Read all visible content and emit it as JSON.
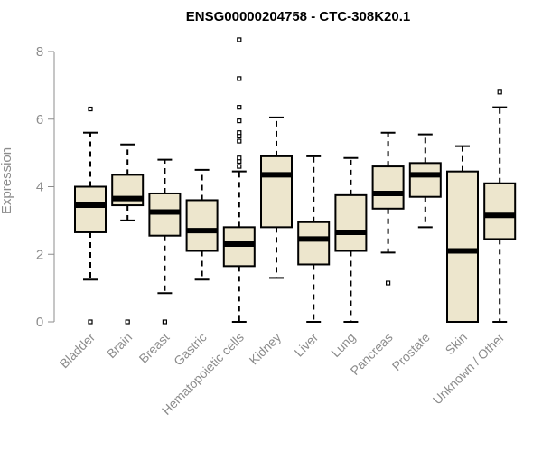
{
  "chart_data": {
    "type": "boxplot",
    "title": "ENSG00000204758 - CTC-308K20.1",
    "ylabel": "Expression",
    "xlabel": "",
    "ylim": [
      0,
      8.4
    ],
    "yticks": [
      0,
      2,
      4,
      6,
      8
    ],
    "box_color": "#ede6cd",
    "categories": [
      "Bladder",
      "Brain",
      "Breast",
      "Gastric",
      "Hematopoietic cells",
      "Kidney",
      "Liver",
      "Lung",
      "Pancreas",
      "Prostate",
      "Skin",
      "Unknown / Other"
    ],
    "boxes": [
      {
        "whisker_low": 1.25,
        "q1": 2.65,
        "median": 3.45,
        "q3": 4.0,
        "whisker_high": 5.6,
        "outliers": [
          0,
          6.3
        ]
      },
      {
        "whisker_low": 3.0,
        "q1": 3.45,
        "median": 3.65,
        "q3": 4.35,
        "whisker_high": 5.25,
        "outliers": [
          0
        ]
      },
      {
        "whisker_low": 0.85,
        "q1": 2.55,
        "median": 3.25,
        "q3": 3.8,
        "whisker_high": 4.8,
        "outliers": [
          0
        ]
      },
      {
        "whisker_low": 1.25,
        "q1": 2.1,
        "median": 2.7,
        "q3": 3.6,
        "whisker_high": 4.5,
        "outliers": []
      },
      {
        "whisker_low": 0,
        "q1": 1.65,
        "median": 2.3,
        "q3": 2.8,
        "whisker_high": 4.45,
        "outliers": [
          4.6,
          4.75,
          4.85,
          5.35,
          5.5,
          5.6,
          5.95,
          6.35,
          7.2,
          8.35
        ]
      },
      {
        "whisker_low": 1.3,
        "q1": 2.8,
        "median": 4.35,
        "q3": 4.9,
        "whisker_high": 6.05,
        "outliers": []
      },
      {
        "whisker_low": 0,
        "q1": 1.7,
        "median": 2.45,
        "q3": 2.95,
        "whisker_high": 4.9,
        "outliers": []
      },
      {
        "whisker_low": 0,
        "q1": 2.1,
        "median": 2.65,
        "q3": 3.75,
        "whisker_high": 4.85,
        "outliers": []
      },
      {
        "whisker_low": 2.05,
        "q1": 3.35,
        "median": 3.8,
        "q3": 4.6,
        "whisker_high": 5.6,
        "outliers": [
          1.15
        ]
      },
      {
        "whisker_low": 2.8,
        "q1": 3.7,
        "median": 4.35,
        "q3": 4.7,
        "whisker_high": 5.55,
        "outliers": []
      },
      {
        "whisker_low": 0,
        "q1": 0,
        "median": 2.1,
        "q3": 4.45,
        "whisker_high": 5.2,
        "outliers": []
      },
      {
        "whisker_low": 0,
        "q1": 2.45,
        "median": 3.15,
        "q3": 4.1,
        "whisker_high": 6.35,
        "outliers": [
          6.8
        ]
      }
    ]
  }
}
